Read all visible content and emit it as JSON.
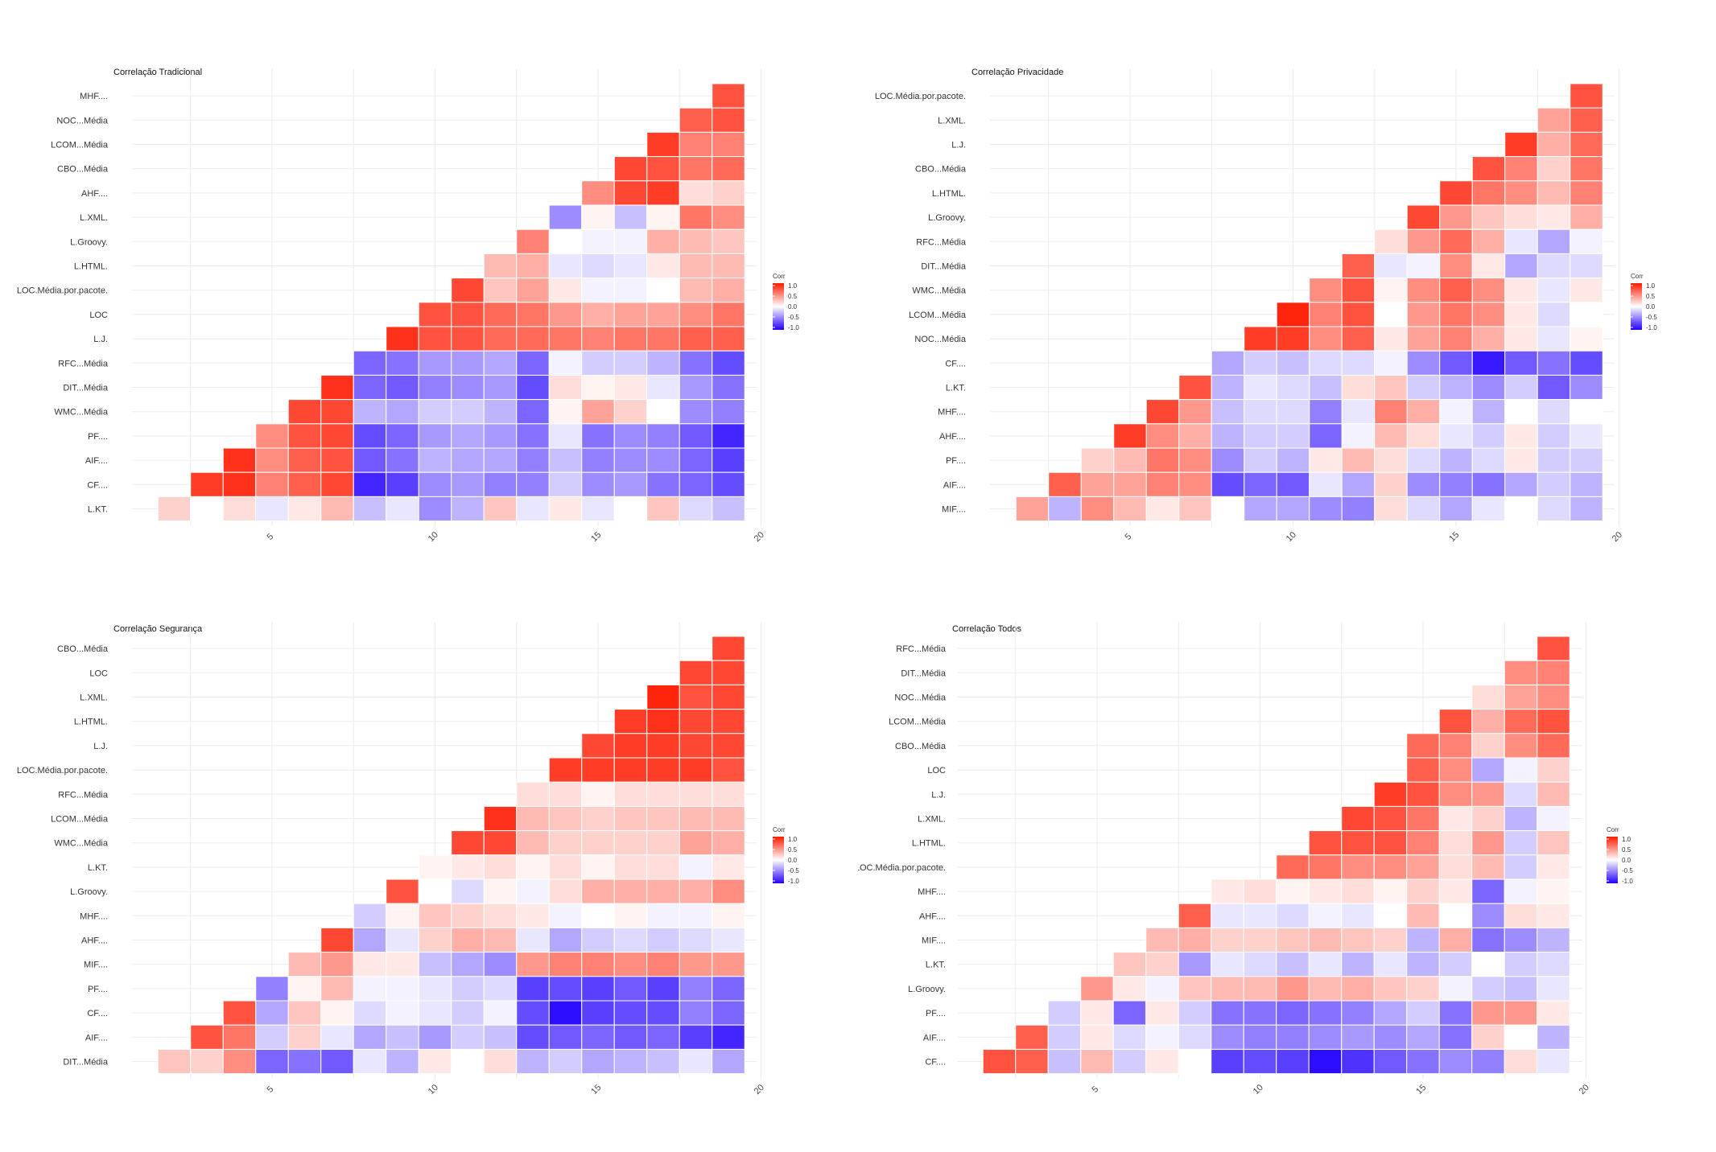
{
  "colors": {
    "low": "#2200ff",
    "mid": "#ffffff",
    "high": "#ff1a00",
    "grid": "#ebebeb",
    "tile_border": "#ffffff"
  },
  "legend": {
    "title": "Corr",
    "labels": [
      "1.0",
      "0.5",
      "0.0",
      "-0.5",
      "-1.0"
    ]
  },
  "chart_data": [
    {
      "type": "heatmap",
      "title": "Correlação Tradicional",
      "xlabel": "",
      "ylabel": "",
      "x_ticks": [
        "5",
        "10",
        "15",
        "20"
      ],
      "xlim": [
        1,
        20
      ],
      "rows": [
        "MHF....",
        "NOC...Média",
        "LCOM...Média",
        "CBO...Média",
        "AHF....",
        "L.XML.",
        "L.Groovy.",
        "L.HTML.",
        "LOC.Média.por.pacote.",
        "LOC",
        "L.J.",
        "RFC...Média",
        "DIT...Média",
        "WMC...Média",
        "PF....",
        "AIF....",
        "CF....",
        "L.KT."
      ],
      "values": [
        [
          0.75
        ],
        [
          0.7,
          0.75
        ],
        [
          0.85,
          0.55,
          0.55
        ],
        [
          0.8,
          0.75,
          0.6,
          0.65
        ],
        [
          0.5,
          0.8,
          0.85,
          0.15,
          0.2
        ],
        [
          -0.45,
          0.05,
          -0.25,
          0.05,
          0.6,
          0.5
        ],
        [
          0.55,
          0.0,
          -0.05,
          -0.05,
          0.35,
          0.3,
          0.25
        ],
        [
          0.3,
          0.35,
          -0.1,
          -0.15,
          -0.1,
          0.1,
          0.3,
          0.3
        ],
        [
          0.8,
          0.25,
          0.4,
          0.1,
          -0.05,
          -0.05,
          0.0,
          0.3,
          0.35
        ],
        [
          0.75,
          0.75,
          0.65,
          0.6,
          0.45,
          0.35,
          0.4,
          0.4,
          0.5,
          0.6
        ],
        [
          0.9,
          0.75,
          0.75,
          0.65,
          0.65,
          0.6,
          0.55,
          0.6,
          0.6,
          0.7,
          0.7
        ],
        [
          -0.6,
          -0.55,
          -0.4,
          -0.4,
          -0.35,
          -0.6,
          -0.05,
          -0.2,
          -0.2,
          -0.3,
          -0.55,
          -0.7
        ],
        [
          0.9,
          -0.6,
          -0.65,
          -0.5,
          -0.45,
          -0.4,
          -0.7,
          0.15,
          0.05,
          0.1,
          -0.1,
          -0.4,
          -0.55
        ],
        [
          0.8,
          0.8,
          -0.3,
          -0.35,
          -0.2,
          -0.2,
          -0.3,
          -0.6,
          0.05,
          0.4,
          0.2,
          0.0,
          -0.45,
          -0.5
        ],
        [
          0.5,
          0.75,
          0.8,
          -0.7,
          -0.6,
          -0.4,
          -0.35,
          -0.4,
          -0.55,
          -0.1,
          -0.55,
          -0.45,
          -0.5,
          -0.65,
          -0.85
        ],
        [
          0.9,
          0.5,
          0.7,
          0.75,
          -0.65,
          -0.55,
          -0.3,
          -0.35,
          -0.35,
          -0.5,
          -0.25,
          -0.5,
          -0.45,
          -0.45,
          -0.6,
          -0.75
        ],
        [
          0.85,
          0.9,
          0.55,
          0.7,
          0.8,
          -0.85,
          -0.75,
          -0.45,
          -0.4,
          -0.5,
          -0.5,
          -0.2,
          -0.45,
          -0.4,
          -0.55,
          -0.6,
          -0.7
        ],
        [
          0.2,
          0.0,
          0.15,
          -0.1,
          0.1,
          0.3,
          -0.25,
          -0.1,
          -0.45,
          -0.3,
          0.25,
          -0.1,
          0.1,
          -0.1,
          0.0,
          0.25,
          -0.15,
          -0.25
        ]
      ]
    },
    {
      "type": "heatmap",
      "title": "Correlação Privacidade",
      "xlabel": "",
      "ylabel": "",
      "x_ticks": [
        "5",
        "10",
        "15",
        "20"
      ],
      "xlim": [
        1,
        20
      ],
      "rows": [
        "LOC.Média.por.pacote.",
        "L.XML.",
        "L.J.",
        "CBO...Média",
        "L.HTML.",
        "L.Groovy.",
        "RFC...Média",
        "DIT...Média",
        "WMC...Média",
        "LCOM...Média",
        "NOC...Média",
        "CF....",
        "L.KT.",
        "MHF....",
        "AHF....",
        "PF....",
        "AIF....",
        "MIF...."
      ],
      "values": [
        [
          0.75
        ],
        [
          0.4,
          0.7
        ],
        [
          0.85,
          0.35,
          0.65
        ],
        [
          0.75,
          0.55,
          0.2,
          0.6
        ],
        [
          0.8,
          0.6,
          0.5,
          0.3,
          0.55
        ],
        [
          0.8,
          0.45,
          0.25,
          0.15,
          0.1,
          0.35
        ],
        [
          0.15,
          0.45,
          0.65,
          0.35,
          -0.1,
          -0.35,
          -0.05
        ],
        [
          0.7,
          -0.1,
          -0.05,
          0.5,
          0.1,
          -0.35,
          -0.15,
          -0.15
        ],
        [
          0.5,
          0.75,
          0.05,
          0.5,
          0.7,
          0.5,
          0.1,
          -0.1,
          0.1
        ],
        [
          0.95,
          0.55,
          0.75,
          0.0,
          0.45,
          0.6,
          0.5,
          0.1,
          -0.15,
          0.0
        ],
        [
          0.85,
          0.85,
          0.5,
          0.7,
          0.1,
          0.4,
          0.55,
          0.35,
          0.1,
          -0.1,
          0.05
        ],
        [
          -0.35,
          -0.2,
          -0.25,
          -0.15,
          -0.15,
          -0.05,
          -0.45,
          -0.65,
          -0.9,
          -0.65,
          -0.55,
          -0.7
        ],
        [
          0.75,
          -0.3,
          -0.1,
          -0.15,
          -0.25,
          0.15,
          0.25,
          -0.2,
          -0.3,
          -0.45,
          -0.2,
          -0.65,
          -0.45
        ],
        [
          0.8,
          0.45,
          -0.25,
          -0.15,
          -0.15,
          -0.5,
          -0.1,
          0.55,
          0.35,
          -0.05,
          -0.3,
          0.0,
          -0.15,
          0.0
        ],
        [
          0.85,
          0.5,
          0.35,
          -0.3,
          -0.2,
          -0.2,
          -0.6,
          -0.05,
          0.3,
          0.15,
          -0.1,
          -0.2,
          0.1,
          -0.2,
          -0.1
        ],
        [
          0.2,
          0.3,
          0.6,
          0.5,
          -0.45,
          -0.2,
          -0.3,
          0.1,
          0.3,
          0.15,
          -0.15,
          -0.3,
          -0.15,
          0.1,
          -0.2,
          -0.2
        ],
        [
          0.7,
          0.4,
          0.4,
          0.55,
          0.5,
          -0.7,
          -0.6,
          -0.65,
          -0.1,
          -0.35,
          0.2,
          -0.45,
          -0.5,
          -0.55,
          -0.35,
          -0.2,
          -0.3
        ],
        [
          0.4,
          -0.3,
          0.5,
          0.3,
          0.1,
          0.25,
          0.0,
          -0.35,
          -0.35,
          -0.45,
          -0.5,
          0.15,
          -0.15,
          -0.35,
          -0.1,
          0.0,
          -0.15,
          -0.3
        ]
      ]
    },
    {
      "type": "heatmap",
      "title": "Correlação Segurança",
      "xlabel": "",
      "ylabel": "",
      "x_ticks": [
        "5",
        "10",
        "15",
        "20"
      ],
      "xlim": [
        1,
        20
      ],
      "rows": [
        "CBO...Média",
        "LOC",
        "L.XML.",
        "L.HTML.",
        "L.J.",
        "LOC.Média.por.pacote.",
        "RFC...Média",
        "LCOM...Média",
        "WMC...Média",
        "L.KT.",
        "L.Groovy.",
        "MHF....",
        "AHF....",
        "MIF....",
        "PF....",
        "CF....",
        "AIF....",
        "DIT...Média"
      ],
      "values": [
        [
          0.8
        ],
        [
          0.8,
          0.8
        ],
        [
          0.95,
          0.75,
          0.8
        ],
        [
          0.85,
          0.9,
          0.8,
          0.8
        ],
        [
          0.8,
          0.85,
          0.85,
          0.8,
          0.8
        ],
        [
          0.85,
          0.85,
          0.85,
          0.85,
          0.85,
          0.75
        ],
        [
          0.15,
          0.15,
          0.05,
          0.15,
          0.15,
          0.15,
          0.15
        ],
        [
          0.9,
          0.3,
          0.25,
          0.2,
          0.25,
          0.25,
          0.3,
          0.3
        ],
        [
          0.8,
          0.8,
          0.3,
          0.2,
          0.2,
          0.2,
          0.2,
          0.4,
          0.35
        ],
        [
          0.05,
          0.1,
          0.15,
          0.05,
          0.15,
          0.05,
          0.15,
          0.15,
          -0.05,
          0.1
        ],
        [
          0.75,
          0.0,
          -0.15,
          0.05,
          -0.05,
          0.15,
          0.35,
          0.35,
          0.35,
          0.35,
          0.5
        ],
        [
          -0.2,
          0.05,
          0.25,
          0.2,
          0.15,
          0.1,
          -0.05,
          0.0,
          0.05,
          -0.05,
          -0.05,
          0.05
        ],
        [
          0.8,
          -0.35,
          -0.1,
          0.2,
          0.35,
          0.3,
          -0.1,
          -0.35,
          -0.2,
          -0.15,
          -0.2,
          -0.15,
          -0.1
        ],
        [
          0.3,
          0.45,
          0.1,
          0.1,
          -0.25,
          -0.35,
          -0.45,
          0.45,
          0.55,
          0.55,
          0.5,
          0.55,
          0.45,
          0.45
        ],
        [
          -0.5,
          0.05,
          0.3,
          -0.05,
          -0.05,
          -0.1,
          -0.2,
          -0.15,
          -0.75,
          -0.7,
          -0.75,
          -0.65,
          -0.75,
          -0.5,
          -0.6
        ],
        [
          0.75,
          -0.35,
          0.25,
          0.05,
          -0.15,
          -0.05,
          -0.1,
          -0.2,
          -0.05,
          -0.7,
          -0.95,
          -0.75,
          -0.7,
          -0.7,
          -0.5,
          -0.6
        ],
        [
          0.75,
          0.6,
          -0.2,
          0.2,
          -0.1,
          -0.35,
          -0.25,
          -0.4,
          -0.2,
          -0.25,
          -0.7,
          -0.65,
          -0.6,
          -0.65,
          -0.6,
          -0.75,
          -0.85
        ],
        [
          0.25,
          0.2,
          0.5,
          -0.6,
          -0.55,
          -0.65,
          -0.1,
          -0.3,
          0.1,
          0.0,
          0.15,
          -0.3,
          -0.2,
          -0.35,
          -0.3,
          -0.25,
          -0.1,
          -0.35
        ]
      ]
    },
    {
      "type": "heatmap",
      "title": "Correlação Todos",
      "xlabel": "",
      "ylabel": "",
      "x_ticks": [
        "5",
        "10",
        "15",
        "20"
      ],
      "xlim": [
        1,
        20
      ],
      "rows": [
        "RFC...Média",
        "DIT...Média",
        "NOC...Média",
        "LCOM...Média",
        "CBO...Média",
        "LOC",
        "L.J.",
        "L.XML.",
        "L.HTML.",
        "LOC.Média.por.pacote.",
        "MHF....",
        "AHF....",
        "MIF....",
        "L.KT.",
        "L.Groovy.",
        "PF....",
        "AIF....",
        "CF...."
      ],
      "values": [
        [
          0.75
        ],
        [
          0.5,
          0.55
        ],
        [
          0.15,
          0.4,
          0.5
        ],
        [
          0.75,
          0.35,
          0.65,
          0.75
        ],
        [
          0.65,
          0.55,
          0.2,
          0.5,
          0.65
        ],
        [
          0.7,
          0.5,
          -0.35,
          -0.05,
          0.2
        ],
        [
          0.85,
          0.75,
          0.5,
          0.45,
          -0.15,
          0.3
        ],
        [
          0.8,
          0.75,
          0.6,
          0.1,
          0.2,
          -0.3,
          -0.05
        ],
        [
          0.75,
          0.75,
          0.75,
          0.55,
          0.15,
          0.45,
          -0.2,
          0.25
        ],
        [
          0.65,
          0.6,
          0.5,
          0.5,
          0.4,
          0.15,
          0.3,
          -0.2,
          0.1
        ],
        [
          0.1,
          0.15,
          0.05,
          0.1,
          0.15,
          0.05,
          0.2,
          0.1,
          -0.6,
          -0.05,
          0.05
        ],
        [
          0.7,
          -0.1,
          -0.1,
          -0.15,
          -0.05,
          -0.1,
          0.0,
          0.3,
          0.0,
          -0.45,
          0.15,
          0.1
        ],
        [
          0.3,
          0.35,
          0.2,
          0.2,
          0.25,
          0.3,
          0.25,
          0.2,
          -0.3,
          0.35,
          -0.55,
          -0.45,
          -0.3
        ],
        [
          0.25,
          0.2,
          -0.4,
          -0.1,
          -0.15,
          -0.25,
          -0.1,
          -0.3,
          -0.1,
          -0.3,
          -0.2,
          0.0,
          -0.2,
          -0.15
        ],
        [
          0.45,
          0.1,
          -0.05,
          0.25,
          0.3,
          0.3,
          0.45,
          0.3,
          0.35,
          0.25,
          0.2,
          -0.05,
          -0.2,
          -0.25,
          -0.1
        ],
        [
          -0.2,
          0.1,
          -0.6,
          0.1,
          -0.2,
          -0.55,
          -0.55,
          -0.6,
          -0.55,
          -0.5,
          -0.35,
          -0.2,
          -0.55,
          0.45,
          0.45,
          0.1
        ],
        [
          0.7,
          -0.2,
          0.1,
          -0.15,
          -0.05,
          -0.15,
          -0.45,
          -0.5,
          -0.5,
          -0.45,
          -0.4,
          -0.45,
          -0.35,
          -0.55,
          0.2,
          0.0,
          -0.3
        ],
        [
          0.75,
          0.7,
          -0.25,
          0.3,
          -0.2,
          0.1,
          0.0,
          -0.75,
          -0.7,
          -0.75,
          -0.95,
          -0.8,
          -0.65,
          -0.55,
          -0.45,
          -0.5,
          0.15,
          -0.1
        ]
      ]
    }
  ]
}
